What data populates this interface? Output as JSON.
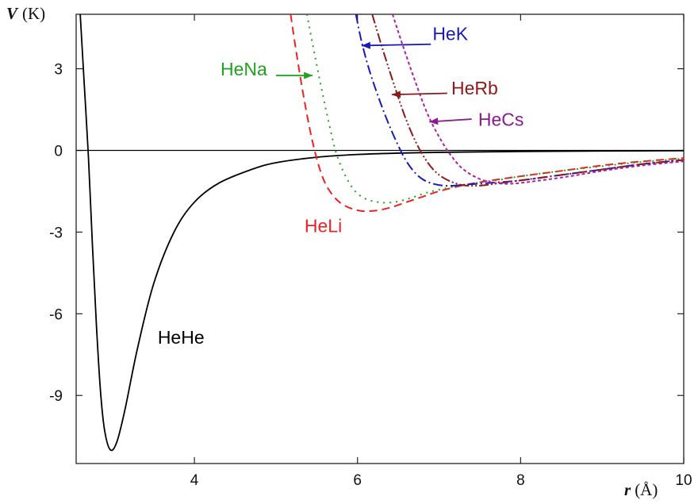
{
  "chart_data": {
    "type": "line",
    "xlabel_var": "r",
    "xlabel_unit": "(Å)",
    "ylabel_var": "V",
    "ylabel_unit": "(K)",
    "xlim": [
      2.55,
      10
    ],
    "ylim": [
      -11.5,
      5
    ],
    "xticks": [
      4,
      6,
      8,
      10
    ],
    "xtick_labels": [
      "4",
      "6",
      "8",
      "10"
    ],
    "yticks": [
      3,
      0,
      -3,
      -6,
      -9
    ],
    "ytick_labels": [
      "3",
      "0",
      "-3",
      "-6",
      "-9"
    ],
    "zero_line": true,
    "grid": false,
    "series": [
      {
        "name": "HeHe",
        "color": "#000000",
        "dash": "solid",
        "x": [
          2.6,
          2.65,
          2.7,
          2.75,
          2.8,
          2.85,
          2.9,
          2.97,
          3.05,
          3.15,
          3.3,
          3.5,
          3.75,
          4.0,
          4.3,
          4.7,
          5.0,
          5.5,
          6.0,
          6.5,
          7.0,
          8.0,
          9.0,
          10.0
        ],
        "y": [
          5,
          2.4,
          -0.2,
          -3.5,
          -6.5,
          -8.9,
          -10.3,
          -11.0,
          -10.7,
          -9.5,
          -7.3,
          -4.9,
          -3.0,
          -1.9,
          -1.2,
          -0.7,
          -0.45,
          -0.25,
          -0.15,
          -0.1,
          -0.07,
          -0.04,
          -0.02,
          -0.01
        ]
      },
      {
        "name": "HeLi",
        "color": "#ee2222",
        "dash": "10,6",
        "x": [
          5.18,
          5.25,
          5.35,
          5.45,
          5.55,
          5.65,
          5.8,
          6.0,
          6.2,
          6.4,
          6.6,
          6.8,
          7.0,
          7.3,
          7.6,
          8.0,
          8.5,
          9.0,
          9.5,
          10.0
        ],
        "y": [
          5,
          3.6,
          1.8,
          0.3,
          -0.8,
          -1.45,
          -1.95,
          -2.2,
          -2.22,
          -2.1,
          -1.9,
          -1.7,
          -1.5,
          -1.28,
          -1.12,
          -0.95,
          -0.75,
          -0.55,
          -0.4,
          -0.28
        ]
      },
      {
        "name": "HeNa",
        "color": "#22a022",
        "dash": "2,6",
        "x": [
          5.38,
          5.45,
          5.55,
          5.65,
          5.75,
          5.9,
          6.05,
          6.25,
          6.45,
          6.65,
          6.85,
          7.1,
          7.4,
          7.7,
          8.0,
          8.5,
          9.0,
          9.5,
          10.0
        ],
        "y": [
          5,
          3.9,
          2.4,
          1.0,
          -0.2,
          -1.2,
          -1.7,
          -1.9,
          -1.9,
          -1.75,
          -1.55,
          -1.38,
          -1.22,
          -1.1,
          -0.95,
          -0.75,
          -0.58,
          -0.42,
          -0.3
        ]
      },
      {
        "name": "HeK",
        "color": "#1a1ab8",
        "dash": "12,4,2,4",
        "x": [
          5.98,
          6.05,
          6.15,
          6.3,
          6.45,
          6.6,
          6.75,
          6.9,
          7.1,
          7.35,
          7.6,
          8.0,
          8.5,
          9.0,
          9.5,
          10.0
        ],
        "y": [
          5,
          4.0,
          2.9,
          1.6,
          0.5,
          -0.4,
          -0.95,
          -1.2,
          -1.3,
          -1.25,
          -1.2,
          -1.1,
          -0.9,
          -0.7,
          -0.5,
          -0.35
        ]
      },
      {
        "name": "HeRb",
        "color": "#8b1a1a",
        "dash": "12,3,2,3,2,3",
        "x": [
          6.18,
          6.3,
          6.45,
          6.6,
          6.75,
          6.9,
          7.05,
          7.25,
          7.45,
          7.7,
          8.0,
          8.5,
          9.0,
          9.5,
          10.0
        ],
        "y": [
          5,
          3.8,
          2.4,
          1.1,
          0.1,
          -0.6,
          -1.0,
          -1.25,
          -1.3,
          -1.22,
          -1.1,
          -0.9,
          -0.7,
          -0.5,
          -0.35
        ]
      },
      {
        "name": "HeCs",
        "color": "#aa22aa",
        "dash": "4,3",
        "x": [
          6.43,
          6.55,
          6.7,
          6.85,
          7.0,
          7.15,
          7.3,
          7.5,
          7.7,
          7.9,
          8.2,
          8.6,
          9.0,
          9.5,
          10.0
        ],
        "y": [
          5,
          3.9,
          2.6,
          1.4,
          0.5,
          -0.2,
          -0.7,
          -1.05,
          -1.2,
          -1.22,
          -1.12,
          -0.95,
          -0.75,
          -0.55,
          -0.4
        ]
      }
    ],
    "annotations": [
      {
        "text": "HeHe",
        "color": "#000000",
        "label_x": 3.55,
        "label_y": -7.1,
        "arrow": false
      },
      {
        "text": "HeLi",
        "color": "#ee2222",
        "label_x": 5.35,
        "label_y": -3.0,
        "arrow": false
      },
      {
        "text": "HeNa",
        "color": "#22a022",
        "label_x": 4.32,
        "label_y": 2.75,
        "arrow_from": [
          5.0,
          2.75
        ],
        "arrow_to": [
          5.45,
          2.75
        ]
      },
      {
        "text": "HeK",
        "color": "#1a1ab8",
        "label_x": 6.92,
        "label_y": 4.05,
        "arrow_from": [
          6.9,
          3.9
        ],
        "arrow_to": [
          6.05,
          3.85
        ]
      },
      {
        "text": "HeRb",
        "color": "#8b1a1a",
        "label_x": 7.15,
        "label_y": 2.05,
        "arrow_from": [
          7.1,
          2.1
        ],
        "arrow_to": [
          6.42,
          2.05
        ]
      },
      {
        "text": "HeCs",
        "color": "#8b1a8b",
        "label_x": 7.48,
        "label_y": 0.9,
        "arrow_from": [
          7.4,
          1.15
        ],
        "arrow_to": [
          6.88,
          1.05
        ]
      }
    ]
  }
}
